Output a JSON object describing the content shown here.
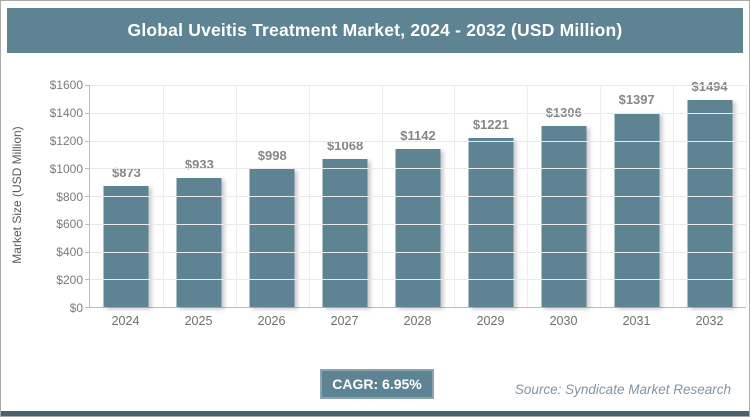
{
  "header": {
    "title": "Global Uveitis Treatment Market, 2024 - 2032 (USD Million)"
  },
  "chart_data": {
    "type": "bar",
    "title": "Global Uveitis Treatment Market, 2024 - 2032 (USD Million)",
    "categories": [
      "2024",
      "2025",
      "2026",
      "2027",
      "2028",
      "2029",
      "2030",
      "2031",
      "2032"
    ],
    "values": [
      873,
      933,
      998,
      1068,
      1142,
      1221,
      1306,
      1397,
      1494
    ],
    "value_labels": [
      "$873",
      "$933",
      "$998",
      "$1068",
      "$1142",
      "$1221",
      "$1306",
      "$1397",
      "$1494"
    ],
    "xlabel": "",
    "ylabel": "Market Size (USD Million)",
    "ylim": [
      0,
      1600
    ],
    "ytick_step": 200,
    "ytick_labels": [
      "$0",
      "$200",
      "$400",
      "$600",
      "$800",
      "$1000",
      "$1200",
      "$1400",
      "$1600"
    ],
    "grid": true,
    "legend": false
  },
  "footer": {
    "cagr_label": "CAGR: 6.95%",
    "source": "Source: Syndicate Market Research"
  },
  "colors": {
    "accent": "#5e8393",
    "bar": "#5e8393",
    "bottom_strip": "#47616d",
    "gridline": "#e9e9e9",
    "axis_line": "#bcbcbc",
    "tick_text": "#7a7a7a",
    "data_label_text": "#878787",
    "title_text": "#ffffff"
  }
}
